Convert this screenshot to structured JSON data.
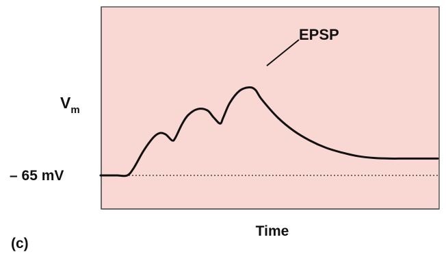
{
  "panel_label": "(c)",
  "chart_data": {
    "type": "line",
    "title": "",
    "xlabel": "Time",
    "ylabel": "Vm",
    "ylabel_main": "V",
    "ylabel_sub": "m",
    "baseline_label": "– 65 mV",
    "baseline_value": -65,
    "annotation": "EPSP",
    "axis_ticks": false,
    "grid": false,
    "colors": {
      "plot_background": "#f9d7d3",
      "plot_border": "#555555",
      "trace": "#111111",
      "baseline": "#444444"
    },
    "series": [
      {
        "points": [
          [
            0.0,
            0.0
          ],
          [
            0.03,
            0.0
          ],
          [
            0.05,
            0.06
          ],
          [
            0.08,
            0.2
          ],
          [
            0.11,
            0.31
          ],
          [
            0.13,
            0.35
          ],
          [
            0.15,
            0.34
          ],
          [
            0.17,
            0.29
          ],
          [
            0.18,
            0.31
          ],
          [
            0.2,
            0.42
          ],
          [
            0.22,
            0.5
          ],
          [
            0.25,
            0.55
          ],
          [
            0.28,
            0.54
          ],
          [
            0.3,
            0.48
          ],
          [
            0.32,
            0.43
          ],
          [
            0.33,
            0.48
          ],
          [
            0.35,
            0.6
          ],
          [
            0.38,
            0.7
          ],
          [
            0.41,
            0.73
          ],
          [
            0.43,
            0.71
          ],
          [
            0.45,
            0.63
          ],
          [
            0.5,
            0.48
          ],
          [
            0.55,
            0.37
          ],
          [
            0.6,
            0.29
          ],
          [
            0.65,
            0.23
          ],
          [
            0.7,
            0.19
          ],
          [
            0.75,
            0.16
          ],
          [
            0.8,
            0.145
          ],
          [
            0.85,
            0.14
          ],
          [
            0.9,
            0.14
          ],
          [
            1.0,
            0.14
          ]
        ]
      }
    ]
  }
}
